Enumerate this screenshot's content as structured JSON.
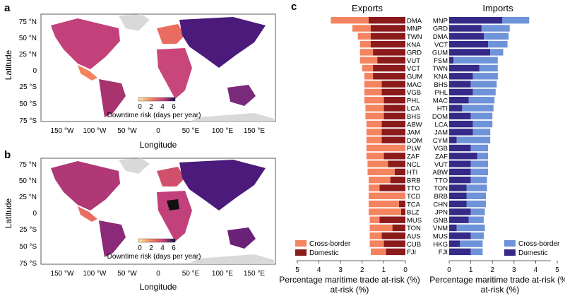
{
  "panels": {
    "a": {
      "letter": "a",
      "ylabel": "Latitude",
      "xlabel": "Longitude",
      "colorbar_label": "Downtime risk (days per year)",
      "colorbar_ticks": [
        "0",
        "2",
        "4",
        "6"
      ],
      "lat_ticks": [
        "75 °N",
        "50 °N",
        "25 °N",
        "0",
        "25 °S",
        "50 °S",
        "75 °S"
      ],
      "lon_ticks": [
        "150 °W",
        "100 °W",
        "50 °W",
        "0",
        "50 °E",
        "100 °E",
        "150 °E"
      ]
    },
    "b": {
      "letter": "b",
      "ylabel": "Latitude",
      "xlabel": "Longitude",
      "colorbar_label": "Downtime risk (days per year)",
      "colorbar_ticks": [
        "0",
        "2",
        "4",
        "6"
      ],
      "lat_ticks": [
        "75 °N",
        "50 °N",
        "25 °N",
        "0",
        "25 °S",
        "50 °S",
        "75 °S"
      ],
      "lon_ticks": [
        "150 °W",
        "100 °W",
        "50 °W",
        "0",
        "50 °E",
        "100 °E",
        "150 °E"
      ]
    },
    "c": {
      "letter": "c"
    }
  },
  "colors": {
    "cross_export": "#f4845f",
    "domestic_export": "#8b1a1a",
    "cross_import": "#6f93d8",
    "domestic_import": "#352a87",
    "land_low": "#f4a261",
    "land_mid": "#c2417a",
    "land_high": "#4b1a7a",
    "ice": "#d9d9d9"
  },
  "chart_data": [
    {
      "type": "bar",
      "orientation": "horizontal",
      "title": "Exports",
      "xlabel": "Percentage maritime trade at-risk (%)",
      "xlim": [
        5,
        0
      ],
      "xticks": [
        "5",
        "4",
        "3",
        "2",
        "1",
        "0"
      ],
      "categories": [
        "DMA",
        "MNP",
        "TWN",
        "KNA",
        "GRD",
        "VUT",
        "VCT",
        "GUM",
        "MAC",
        "VGB",
        "PHL",
        "LCA",
        "BHS",
        "ABW",
        "JAM",
        "DOM",
        "PLW",
        "ZAF",
        "NCL",
        "HTI",
        "BRB",
        "TTO",
        "TCD",
        "TCA",
        "BLZ",
        "MUS",
        "TON",
        "AUS",
        "CUB",
        "FJI"
      ],
      "series": [
        {
          "name": "Domestic",
          "values": [
            1.7,
            1.6,
            1.6,
            1.6,
            1.5,
            1.3,
            1.5,
            1.5,
            1.1,
            1.1,
            1.0,
            1.0,
            1.0,
            1.1,
            1.1,
            1.1,
            0.0,
            1.0,
            0.8,
            0.5,
            0.7,
            1.2,
            0.0,
            0.3,
            0.2,
            1.2,
            0.6,
            1.1,
            1.0,
            0.9
          ]
        },
        {
          "name": "Cross-border",
          "values": [
            1.75,
            0.85,
            0.6,
            0.5,
            0.6,
            0.8,
            0.5,
            0.4,
            0.8,
            0.8,
            0.9,
            0.85,
            0.85,
            0.7,
            0.7,
            0.7,
            1.8,
            0.8,
            0.95,
            1.25,
            1.0,
            0.5,
            1.7,
            1.4,
            1.5,
            0.45,
            1.05,
            0.55,
            0.65,
            0.7
          ]
        }
      ],
      "legend": [
        "Cross-border",
        "Domestic"
      ],
      "legend_position": "bottom-left"
    },
    {
      "type": "bar",
      "orientation": "horizontal",
      "title": "Imports",
      "xlabel": "Percentage maritime trade at-risk (%)",
      "xlim": [
        0,
        5
      ],
      "xticks": [
        "0",
        "1",
        "2",
        "3",
        "4",
        "5"
      ],
      "categories": [
        "MNP",
        "GRD",
        "DMA",
        "VCT",
        "GUM",
        "FSM",
        "TWN",
        "KNA",
        "BHS",
        "PHL",
        "MAC",
        "HTI",
        "DOM",
        "LCA",
        "JAM",
        "CYM",
        "VGB",
        "ZAF",
        "VUT",
        "ABW",
        "TTO",
        "TON",
        "BRB",
        "CHN",
        "JPN",
        "GNB",
        "VNM",
        "MUS",
        "HKG",
        "FJI"
      ],
      "series": [
        {
          "name": "Domestic",
          "values": [
            2.45,
            1.5,
            1.6,
            1.8,
            1.9,
            0.2,
            1.4,
            1.1,
            1.0,
            1.1,
            0.9,
            0.6,
            1.0,
            1.1,
            1.1,
            0.35,
            1.0,
            1.3,
            1.0,
            1.0,
            1.0,
            0.8,
            0.8,
            0.8,
            1.0,
            0.9,
            0.35,
            1.0,
            0.5,
            1.0
          ]
        },
        {
          "name": "Cross-border",
          "values": [
            1.25,
            1.3,
            1.15,
            0.9,
            0.6,
            2.05,
            0.85,
            1.15,
            1.2,
            1.05,
            1.2,
            1.45,
            1.0,
            0.9,
            0.8,
            1.55,
            0.8,
            0.5,
            0.8,
            0.8,
            0.75,
            0.95,
            0.9,
            0.9,
            0.65,
            0.7,
            1.3,
            0.6,
            1.05,
            0.55
          ]
        }
      ],
      "legend": [
        "Cross-border",
        "Domestic"
      ],
      "legend_position": "bottom-right"
    }
  ]
}
